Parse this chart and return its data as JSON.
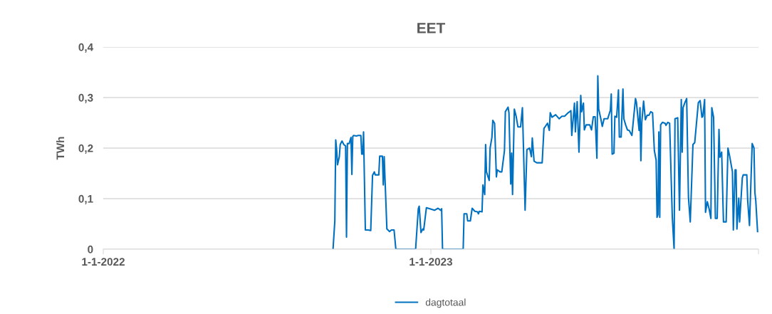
{
  "chart_data": {
    "type": "line",
    "title": "EET",
    "ylabel": "TWh",
    "x": [
      "2022-09-14",
      "2022-09-16",
      "2022-09-17",
      "2022-09-18",
      "2022-09-19",
      "2022-09-21",
      "2022-09-22",
      "2022-09-24",
      "2022-09-26",
      "2022-09-28",
      "2022-09-29",
      "2022-09-30",
      "2022-10-02",
      "2022-10-04",
      "2022-10-05",
      "2022-10-06",
      "2022-10-07",
      "2022-10-10",
      "2022-10-12",
      "2022-10-15",
      "2022-10-16",
      "2022-10-17",
      "2022-10-18",
      "2022-10-20",
      "2022-10-23",
      "2022-10-26",
      "2022-10-28",
      "2022-10-30",
      "2022-10-31",
      "2022-11-04",
      "2022-11-05",
      "2022-11-08",
      "2022-11-09",
      "2022-11-10",
      "2022-11-13",
      "2022-11-16",
      "2022-11-18",
      "2022-11-21",
      "2022-11-23",
      "2022-12-15",
      "2022-12-18",
      "2022-12-19",
      "2022-12-21",
      "2022-12-23",
      "2022-12-24",
      "2022-12-27",
      "2022-12-31",
      "2023-01-05",
      "2023-01-09",
      "2023-01-12",
      "2023-01-13",
      "2023-01-14",
      "2023-02-06",
      "2023-02-07",
      "2023-02-10",
      "2023-02-11",
      "2023-02-14",
      "2023-02-16",
      "2023-02-19",
      "2023-02-22",
      "2023-02-23",
      "2023-02-24",
      "2023-02-27",
      "2023-02-28",
      "2023-03-02",
      "2023-03-03",
      "2023-03-04",
      "2023-03-07",
      "2023-03-08",
      "2023-03-10",
      "2023-03-11",
      "2023-03-13",
      "2023-03-15",
      "2023-03-16",
      "2023-03-19",
      "2023-03-21",
      "2023-03-24",
      "2023-03-25",
      "2023-03-28",
      "2023-03-29",
      "2023-03-31",
      "2023-04-01",
      "2023-04-02",
      "2023-04-04",
      "2023-04-06",
      "2023-04-08",
      "2023-04-11",
      "2023-04-13",
      "2023-04-16",
      "2023-04-18",
      "2023-04-21",
      "2023-04-23",
      "2023-04-24",
      "2023-04-26",
      "2023-04-29",
      "2023-05-01",
      "2023-05-05",
      "2023-05-07",
      "2023-05-09",
      "2023-05-11",
      "2023-05-13",
      "2023-05-14",
      "2023-05-16",
      "2023-05-20",
      "2023-05-24",
      "2023-05-27",
      "2023-05-30",
      "2023-06-03",
      "2023-06-06",
      "2023-06-07",
      "2023-06-10",
      "2023-06-11",
      "2023-06-13",
      "2023-06-15",
      "2023-06-17",
      "2023-06-18",
      "2023-06-20",
      "2023-06-21",
      "2023-06-23",
      "2023-06-27",
      "2023-06-29",
      "2023-07-01",
      "2023-07-03",
      "2023-07-05",
      "2023-07-06",
      "2023-07-07",
      "2023-07-09",
      "2023-07-11",
      "2023-07-13",
      "2023-07-17",
      "2023-07-20",
      "2023-07-21",
      "2023-07-22",
      "2023-07-24",
      "2023-07-25",
      "2023-07-27",
      "2023-07-29",
      "2023-07-30",
      "2023-08-01",
      "2023-08-03",
      "2023-08-04",
      "2023-08-06",
      "2023-08-08",
      "2023-08-10",
      "2023-08-13",
      "2023-08-17",
      "2023-08-18",
      "2023-08-21",
      "2023-08-22",
      "2023-08-23",
      "2023-08-24",
      "2023-08-26",
      "2023-08-28",
      "2023-08-30",
      "2023-09-01",
      "2023-09-03",
      "2023-09-05",
      "2023-09-07",
      "2023-09-09",
      "2023-09-10",
      "2023-09-11",
      "2023-09-12",
      "2023-09-13",
      "2023-09-14",
      "2023-09-16",
      "2023-09-19",
      "2023-09-20",
      "2023-09-22",
      "2023-09-24",
      "2023-09-27",
      "2023-09-29",
      "2023-09-30",
      "2023-10-03",
      "2023-10-05",
      "2023-10-07",
      "2023-10-08",
      "2023-10-09",
      "2023-10-11",
      "2023-10-13",
      "2023-10-15",
      "2023-10-17",
      "2023-10-20",
      "2023-10-22",
      "2023-10-26",
      "2023-10-28",
      "2023-10-30",
      "2023-10-31",
      "2023-11-02",
      "2023-11-03",
      "2023-11-05",
      "2023-11-07",
      "2023-11-09",
      "2023-11-10",
      "2023-11-12",
      "2023-11-14",
      "2023-11-16",
      "2023-11-18",
      "2023-11-19",
      "2023-11-21",
      "2023-11-23",
      "2023-11-26",
      "2023-11-28",
      "2023-11-30",
      "2023-12-03",
      "2023-12-04",
      "2023-12-06",
      "2023-12-07",
      "2023-12-08",
      "2023-12-10",
      "2023-12-11",
      "2023-12-14",
      "2023-12-15",
      "2023-12-19",
      "2023-12-20",
      "2023-12-22",
      "2023-12-25",
      "2023-12-27",
      "2023-12-28",
      "2023-12-29",
      "2023-12-31"
    ],
    "series": [
      {
        "name": "dagtotaal",
        "color": "#0070c0",
        "values": [
          0,
          0.056,
          0.216,
          0.197,
          0.167,
          0.183,
          0.207,
          0.214,
          0.207,
          0.204,
          0.024,
          0.209,
          0.209,
          0.221,
          0.148,
          0.223,
          0.225,
          0.224,
          0.225,
          0.225,
          0.188,
          0.188,
          0.232,
          0.038,
          0.038,
          0.037,
          0.146,
          0.153,
          0.147,
          0.147,
          0.184,
          0.184,
          0.127,
          0.183,
          0.04,
          0.035,
          0.038,
          0.038,
          0,
          0,
          0.08,
          0.085,
          0.033,
          0.04,
          0.038,
          0.082,
          0.08,
          0.077,
          0.081,
          0.077,
          0.08,
          0,
          0,
          0.07,
          0.07,
          0.056,
          0.056,
          0.081,
          0.075,
          0.074,
          0.07,
          0.075,
          0.074,
          0.127,
          0.108,
          0.207,
          0.153,
          0.136,
          0.2,
          0.221,
          0.255,
          0.249,
          0.143,
          0.157,
          0.153,
          0.153,
          0.195,
          0.272,
          0.281,
          0.27,
          0.129,
          0.19,
          0.108,
          0.277,
          0.263,
          0.242,
          0.242,
          0.28,
          0.077,
          0.197,
          0.2,
          0.183,
          0.22,
          0.174,
          0.171,
          0.171,
          0.171,
          0.239,
          0.244,
          0.249,
          0.235,
          0.27,
          0.261,
          0.266,
          0.258,
          0.263,
          0.263,
          0.27,
          0.274,
          0.225,
          0.289,
          0.232,
          0.292,
          0.192,
          0.304,
          0.272,
          0.289,
          0.236,
          0.246,
          0.246,
          0.236,
          0.262,
          0.262,
          0.18,
          0.343,
          0.277,
          0.261,
          0.243,
          0.258,
          0.258,
          0.275,
          0.307,
          0.188,
          0.19,
          0.263,
          0.261,
          0.315,
          0.222,
          0.222,
          0.317,
          0.258,
          0.246,
          0.236,
          0.235,
          0.225,
          0.298,
          0.291,
          0.235,
          0.28,
          0.175,
          0.251,
          0.293,
          0.256,
          0.265,
          0.265,
          0.272,
          0.27,
          0.195,
          0.176,
          0.063,
          0.068,
          0.232,
          0.063,
          0.246,
          0.251,
          0.249,
          0.245,
          0.251,
          0.249,
          0.063,
          0,
          0.258,
          0.26,
          0.077,
          0.296,
          0.192,
          0.28,
          0.29,
          0.298,
          0.103,
          0.054,
          0.207,
          0.211,
          0.29,
          0.294,
          0.261,
          0.263,
          0.296,
          0.073,
          0.094,
          0.08,
          0.061,
          0.28,
          0.261,
          0.061,
          0.061,
          0.237,
          0.182,
          0.192,
          0.054,
          0.054,
          0.2,
          0.183,
          0.153,
          0.038,
          0.157,
          0.157,
          0.04,
          0.101,
          0.054,
          0.141,
          0.147,
          0.147,
          0.096,
          0.047,
          0.209,
          0.2,
          0.113,
          0.096,
          0.035
        ]
      }
    ],
    "xlim": [
      "2022-01-01",
      "2024-01-01"
    ],
    "xticks": [
      {
        "value": "2022-01-01",
        "label": "1-1-2022"
      },
      {
        "value": "2023-01-01",
        "label": "1-1-2023"
      },
      {
        "value": "2024-01-01",
        "label": null
      }
    ],
    "ylim": [
      0,
      0.4
    ],
    "yticks": [
      {
        "value": 0,
        "label": "0"
      },
      {
        "value": 0.1,
        "label": "0,1"
      },
      {
        "value": 0.2,
        "label": "0,2"
      },
      {
        "value": 0.3,
        "label": "0,3"
      },
      {
        "value": 0.4,
        "label": "0,4"
      }
    ],
    "grid": "y",
    "legend": "bottom",
    "marker": "none",
    "line_style": "solid"
  }
}
